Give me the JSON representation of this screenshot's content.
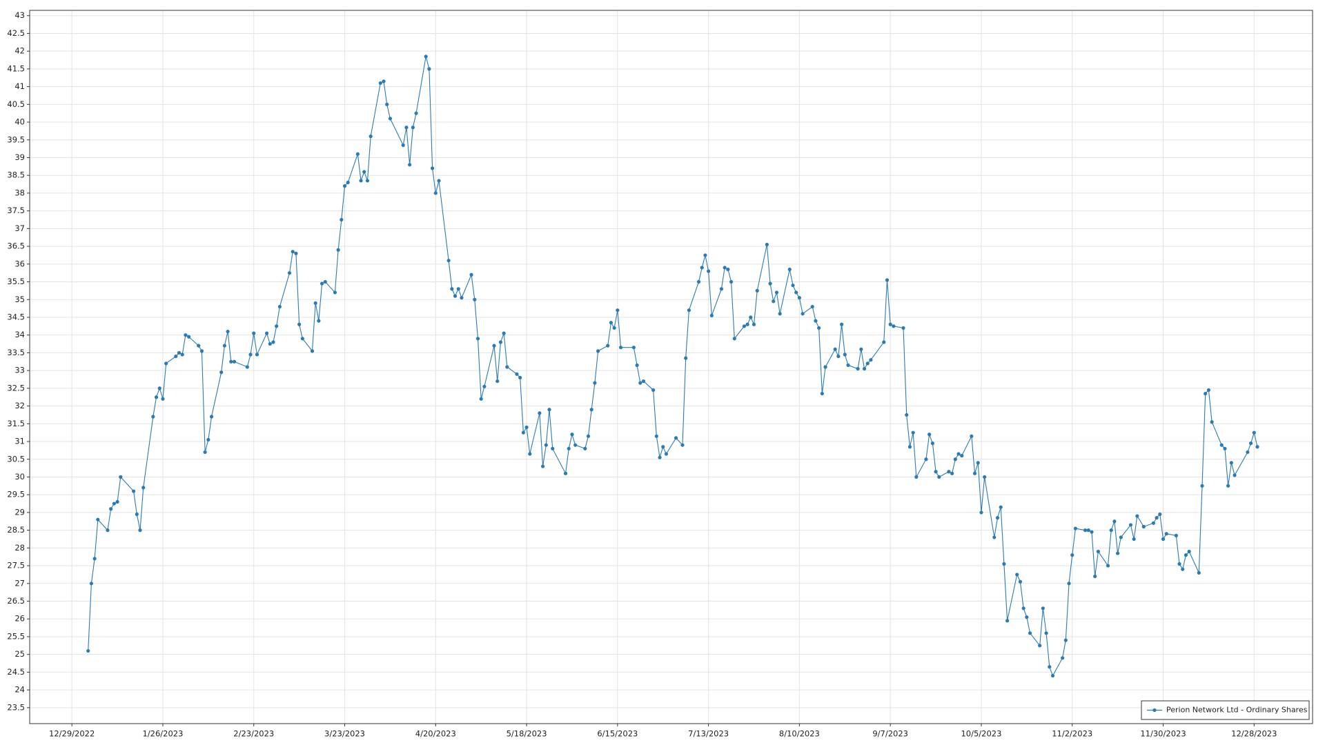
{
  "chart_data": {
    "type": "line",
    "x": [
      "1/3/2023",
      "1/4/2023",
      "1/5/2023",
      "1/6/2023",
      "1/9/2023",
      "1/10/2023",
      "1/11/2023",
      "1/12/2023",
      "1/13/2023",
      "1/17/2023",
      "1/18/2023",
      "1/19/2023",
      "1/20/2023",
      "1/23/2023",
      "1/24/2023",
      "1/25/2023",
      "1/26/2023",
      "1/27/2023",
      "1/30/2023",
      "1/31/2023",
      "2/1/2023",
      "2/2/2023",
      "2/3/2023",
      "2/6/2023",
      "2/7/2023",
      "2/8/2023",
      "2/9/2023",
      "2/10/2023",
      "2/13/2023",
      "2/14/2023",
      "2/15/2023",
      "2/16/2023",
      "2/17/2023",
      "2/21/2023",
      "2/22/2023",
      "2/23/2023",
      "2/24/2023",
      "2/27/2023",
      "2/28/2023",
      "3/1/2023",
      "3/2/2023",
      "3/3/2023",
      "3/6/2023",
      "3/7/2023",
      "3/8/2023",
      "3/9/2023",
      "3/10/2023",
      "3/13/2023",
      "3/14/2023",
      "3/15/2023",
      "3/16/2023",
      "3/17/2023",
      "3/20/2023",
      "3/21/2023",
      "3/22/2023",
      "3/23/2023",
      "3/24/2023",
      "3/27/2023",
      "3/28/2023",
      "3/29/2023",
      "3/30/2023",
      "3/31/2023",
      "4/3/2023",
      "4/4/2023",
      "4/5/2023",
      "4/6/2023",
      "4/10/2023",
      "4/11/2023",
      "4/12/2023",
      "4/13/2023",
      "4/14/2023",
      "4/17/2023",
      "4/18/2023",
      "4/19/2023",
      "4/20/2023",
      "4/21/2023",
      "4/24/2023",
      "4/25/2023",
      "4/26/2023",
      "4/27/2023",
      "4/28/2023",
      "5/1/2023",
      "5/2/2023",
      "5/3/2023",
      "5/4/2023",
      "5/5/2023",
      "5/8/2023",
      "5/9/2023",
      "5/10/2023",
      "5/11/2023",
      "5/12/2023",
      "5/15/2023",
      "5/16/2023",
      "5/17/2023",
      "5/18/2023",
      "5/19/2023",
      "5/22/2023",
      "5/23/2023",
      "5/24/2023",
      "5/25/2023",
      "5/26/2023",
      "5/30/2023",
      "5/31/2023",
      "6/1/2023",
      "6/2/2023",
      "6/5/2023",
      "6/6/2023",
      "6/7/2023",
      "6/8/2023",
      "6/9/2023",
      "6/12/2023",
      "6/13/2023",
      "6/14/2023",
      "6/15/2023",
      "6/16/2023",
      "6/20/2023",
      "6/21/2023",
      "6/22/2023",
      "6/23/2023",
      "6/26/2023",
      "6/27/2023",
      "6/28/2023",
      "6/29/2023",
      "6/30/2023",
      "7/3/2023",
      "7/5/2023",
      "7/6/2023",
      "7/7/2023",
      "7/10/2023",
      "7/11/2023",
      "7/12/2023",
      "7/13/2023",
      "7/14/2023",
      "7/17/2023",
      "7/18/2023",
      "7/19/2023",
      "7/20/2023",
      "7/21/2023",
      "7/24/2023",
      "7/25/2023",
      "7/26/2023",
      "7/27/2023",
      "7/28/2023",
      "7/31/2023",
      "8/1/2023",
      "8/2/2023",
      "8/3/2023",
      "8/4/2023",
      "8/7/2023",
      "8/8/2023",
      "8/9/2023",
      "8/10/2023",
      "8/11/2023",
      "8/14/2023",
      "8/15/2023",
      "8/16/2023",
      "8/17/2023",
      "8/18/2023",
      "8/21/2023",
      "8/22/2023",
      "8/23/2023",
      "8/24/2023",
      "8/25/2023",
      "8/28/2023",
      "8/29/2023",
      "8/30/2023",
      "8/31/2023",
      "9/1/2023",
      "9/5/2023",
      "9/6/2023",
      "9/7/2023",
      "9/8/2023",
      "9/11/2023",
      "9/12/2023",
      "9/13/2023",
      "9/14/2023",
      "9/15/2023",
      "9/18/2023",
      "9/19/2023",
      "9/20/2023",
      "9/21/2023",
      "9/22/2023",
      "9/25/2023",
      "9/26/2023",
      "9/27/2023",
      "9/28/2023",
      "9/29/2023",
      "10/2/2023",
      "10/3/2023",
      "10/4/2023",
      "10/5/2023",
      "10/6/2023",
      "10/9/2023",
      "10/10/2023",
      "10/11/2023",
      "10/12/2023",
      "10/13/2023",
      "10/16/2023",
      "10/17/2023",
      "10/18/2023",
      "10/19/2023",
      "10/20/2023",
      "10/23/2023",
      "10/24/2023",
      "10/25/2023",
      "10/26/2023",
      "10/27/2023",
      "10/30/2023",
      "10/31/2023",
      "11/1/2023",
      "11/2/2023",
      "11/3/2023",
      "11/6/2023",
      "11/7/2023",
      "11/8/2023",
      "11/9/2023",
      "11/10/2023",
      "11/13/2023",
      "11/14/2023",
      "11/15/2023",
      "11/16/2023",
      "11/17/2023",
      "11/20/2023",
      "11/21/2023",
      "11/22/2023",
      "11/24/2023",
      "11/27/2023",
      "11/28/2023",
      "11/29/2023",
      "11/30/2023",
      "12/1/2023",
      "12/4/2023",
      "12/5/2023",
      "12/6/2023",
      "12/7/2023",
      "12/8/2023",
      "12/11/2023",
      "12/12/2023",
      "12/13/2023",
      "12/14/2023",
      "12/15/2023",
      "12/18/2023",
      "12/19/2023",
      "12/20/2023",
      "12/21/2023",
      "12/22/2023",
      "12/26/2023",
      "12/27/2023",
      "12/28/2023",
      "12/29/2023"
    ],
    "series": [
      {
        "name": "Perion Network Ltd - Ordinary Shares",
        "color": "#2a7ab5",
        "values": [
          25.1,
          27.0,
          27.7,
          28.8,
          28.5,
          29.1,
          29.25,
          29.3,
          30.0,
          29.6,
          28.95,
          28.5,
          29.7,
          31.7,
          32.25,
          32.5,
          32.2,
          33.2,
          33.4,
          33.5,
          33.45,
          34.0,
          33.95,
          33.7,
          33.55,
          30.7,
          31.05,
          31.7,
          32.95,
          33.7,
          34.1,
          33.25,
          33.25,
          33.1,
          33.45,
          34.05,
          33.45,
          34.05,
          33.75,
          33.8,
          34.25,
          34.8,
          35.75,
          36.35,
          36.3,
          34.3,
          33.9,
          33.55,
          34.9,
          34.4,
          35.45,
          35.5,
          35.2,
          36.4,
          37.25,
          38.2,
          38.3,
          39.1,
          38.35,
          38.6,
          38.35,
          39.6,
          41.1,
          41.15,
          40.5,
          40.1,
          39.35,
          39.85,
          38.8,
          39.85,
          40.25,
          41.85,
          41.5,
          38.7,
          38.0,
          38.35,
          36.1,
          35.3,
          35.1,
          35.3,
          35.05,
          35.7,
          35.0,
          33.9,
          32.2,
          32.55,
          33.7,
          32.7,
          33.8,
          34.05,
          33.1,
          32.9,
          32.8,
          31.25,
          31.4,
          30.65,
          31.8,
          30.3,
          30.9,
          31.9,
          30.8,
          30.1,
          30.8,
          31.2,
          30.9,
          30.8,
          31.15,
          31.9,
          32.65,
          33.55,
          33.7,
          34.35,
          34.2,
          34.7,
          33.65,
          33.65,
          33.15,
          32.65,
          32.7,
          32.45,
          31.15,
          30.55,
          30.85,
          30.65,
          31.1,
          30.9,
          33.35,
          34.7,
          35.5,
          35.9,
          36.25,
          35.8,
          34.55,
          35.3,
          35.9,
          35.85,
          35.5,
          33.9,
          34.25,
          34.3,
          34.5,
          34.3,
          35.25,
          36.55,
          35.45,
          34.95,
          35.2,
          34.6,
          35.85,
          35.4,
          35.2,
          35.05,
          34.6,
          34.8,
          34.4,
          34.2,
          32.35,
          33.1,
          33.6,
          33.4,
          34.3,
          33.45,
          33.15,
          33.05,
          33.6,
          33.05,
          33.2,
          33.3,
          33.8,
          35.55,
          34.3,
          34.25,
          34.2,
          31.75,
          30.85,
          31.25,
          30.0,
          30.5,
          31.2,
          30.95,
          30.15,
          30.0,
          30.15,
          30.1,
          30.5,
          30.65,
          30.6,
          31.15,
          30.1,
          30.4,
          29.0,
          30.0,
          28.3,
          28.85,
          29.15,
          27.55,
          25.95,
          27.25,
          27.05,
          26.3,
          26.05,
          25.6,
          25.25,
          26.3,
          25.6,
          24.65,
          24.4,
          24.9,
          25.4,
          27.0,
          27.8,
          28.55,
          28.5,
          28.5,
          28.45,
          27.2,
          27.9,
          27.5,
          28.5,
          28.75,
          27.85,
          28.3,
          28.65,
          28.25,
          28.9,
          28.6,
          28.7,
          28.85,
          28.95,
          28.25,
          28.4,
          28.35,
          27.55,
          27.4,
          27.8,
          27.9,
          27.3,
          29.75,
          32.35,
          32.45,
          31.55,
          30.9,
          30.8,
          29.75,
          30.4,
          30.05,
          30.7,
          30.95,
          31.25,
          30.85
        ]
      }
    ],
    "xlim": [
      "12/16/2022",
      "1/15/2024"
    ],
    "xticks": [
      "12/29/2022",
      "1/26/2023",
      "2/23/2023",
      "3/23/2023",
      "4/20/2023",
      "5/18/2023",
      "6/15/2023",
      "7/13/2023",
      "8/10/2023",
      "9/7/2023",
      "10/5/2023",
      "11/2/2023",
      "11/30/2023",
      "12/28/2023"
    ],
    "ylim": [
      23.05,
      43.15
    ],
    "yticks": [
      23.5,
      24,
      24.5,
      25,
      25.5,
      26,
      26.5,
      27,
      27.5,
      28,
      28.5,
      29,
      29.5,
      30,
      30.5,
      31,
      31.5,
      32,
      32.5,
      33,
      33.5,
      34,
      34.5,
      35,
      35.5,
      36,
      36.5,
      37,
      37.5,
      38,
      38.5,
      39,
      39.5,
      40,
      40.5,
      41,
      41.5,
      42,
      42.5,
      43
    ],
    "grid": true,
    "legend": "lower right",
    "markers": true
  }
}
